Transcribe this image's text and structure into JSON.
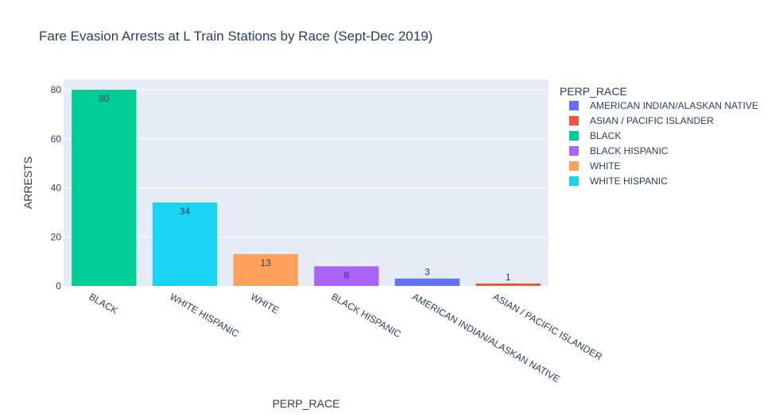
{
  "chart_data": {
    "type": "bar",
    "title": "Fare Evasion Arrests at L Train Stations by Race (Sept-Dec 2019)",
    "xlabel": "PERP_RACE",
    "ylabel": "ARRESTS",
    "ylim": [
      0,
      80
    ],
    "yticks": [
      0,
      20,
      40,
      60,
      80
    ],
    "grid": true,
    "categories": [
      "BLACK",
      "WHITE HISPANIC",
      "WHITE",
      "BLACK HISPANIC",
      "AMERICAN INDIAN/ALASKAN NATIVE",
      "ASIAN / PACIFIC ISLANDER"
    ],
    "series": [
      {
        "name": "BLACK",
        "category": "BLACK",
        "value": 80,
        "color": "#00cc96"
      },
      {
        "name": "WHITE HISPANIC",
        "category": "WHITE HISPANIC",
        "value": 34,
        "color": "#19d3f3"
      },
      {
        "name": "WHITE",
        "category": "WHITE",
        "value": 13,
        "color": "#ffa15a"
      },
      {
        "name": "BLACK HISPANIC",
        "category": "BLACK HISPANIC",
        "value": 8,
        "color": "#ab63fa"
      },
      {
        "name": "AMERICAN INDIAN/ALASKAN NATIVE",
        "category": "AMERICAN INDIAN/ALASKAN NATIVE",
        "value": 3,
        "color": "#636efa"
      },
      {
        "name": "ASIAN / PACIFIC ISLANDER",
        "category": "ASIAN / PACIFIC ISLANDER",
        "value": 1,
        "color": "#ef553b"
      }
    ],
    "legend": {
      "title": "PERP_RACE",
      "placement": "right",
      "order": [
        "AMERICAN INDIAN/ALASKAN NATIVE",
        "ASIAN / PACIFIC ISLANDER",
        "BLACK",
        "BLACK HISPANIC",
        "WHITE",
        "WHITE HISPANIC"
      ]
    },
    "colors": {
      "plot_background": "#e5ecf6",
      "grid": "#ffffff",
      "text": "#2a3f5f"
    }
  }
}
